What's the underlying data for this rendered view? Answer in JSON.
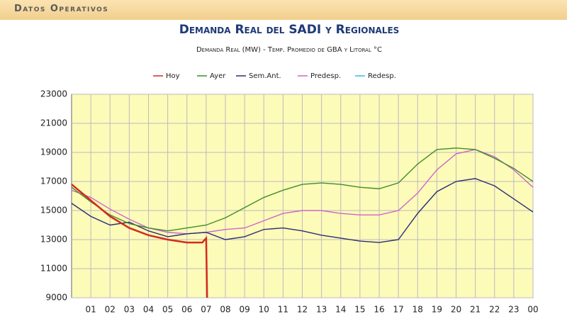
{
  "header": {
    "title": "Datos Operativos"
  },
  "chart_data": {
    "type": "line",
    "title": "Demanda Real del SADI y Regionales",
    "subtitle": "Demanda Real (MW) - Temp. Promedio de GBA y Litoral °C",
    "x": [
      0,
      1,
      2,
      3,
      4,
      5,
      6,
      7,
      8,
      9,
      10,
      11,
      12,
      13,
      14,
      15,
      16,
      17,
      18,
      19,
      20,
      21,
      22,
      23,
      24
    ],
    "xlim": [
      0,
      24
    ],
    "xticks": [
      {
        "value": 1,
        "label": "01"
      },
      {
        "value": 2,
        "label": "02"
      },
      {
        "value": 3,
        "label": "03"
      },
      {
        "value": 4,
        "label": "04"
      },
      {
        "value": 5,
        "label": "05"
      },
      {
        "value": 6,
        "label": "06"
      },
      {
        "value": 7,
        "label": "07"
      },
      {
        "value": 8,
        "label": "08"
      },
      {
        "value": 9,
        "label": "09"
      },
      {
        "value": 10,
        "label": "10"
      },
      {
        "value": 11,
        "label": "11"
      },
      {
        "value": 12,
        "label": "12"
      },
      {
        "value": 13,
        "label": "13"
      },
      {
        "value": 14,
        "label": "14"
      },
      {
        "value": 15,
        "label": "15"
      },
      {
        "value": 16,
        "label": "16"
      },
      {
        "value": 17,
        "label": "17"
      },
      {
        "value": 18,
        "label": "18"
      },
      {
        "value": 19,
        "label": "19"
      },
      {
        "value": 20,
        "label": "20"
      },
      {
        "value": 21,
        "label": "21"
      },
      {
        "value": 22,
        "label": "22"
      },
      {
        "value": 23,
        "label": "23"
      },
      {
        "value": 24,
        "label": "00"
      }
    ],
    "ylim": [
      9000,
      23000
    ],
    "yticks": [
      9000,
      11000,
      13000,
      15000,
      17000,
      19000,
      21000,
      23000
    ],
    "grid": true,
    "series": [
      {
        "name": "Hoy",
        "color": "#d42a1e",
        "x": [
          0,
          1,
          2,
          3,
          4,
          5,
          6,
          6.8,
          7,
          7.05
        ],
        "values": [
          16800,
          15700,
          14600,
          13800,
          13300,
          13000,
          12800,
          12800,
          13100,
          9000
        ]
      },
      {
        "name": "Ayer",
        "color": "#3f8c2c",
        "values": [
          16600,
          15600,
          14700,
          14100,
          13800,
          13600,
          13800,
          14000,
          14500,
          15200,
          15900,
          16400,
          16800,
          16900,
          16800,
          16600,
          16500,
          16900,
          18200,
          19200,
          19300,
          19200,
          18600,
          17900,
          17000
        ]
      },
      {
        "name": "Sem.Ant.",
        "color": "#2c2c78",
        "values": [
          15500,
          14600,
          14000,
          14200,
          13600,
          13200,
          13400,
          13500,
          13000,
          13200,
          13700,
          13800,
          13600,
          13300,
          13100,
          12900,
          12800,
          13000,
          14800,
          16300,
          17000,
          17200,
          16700,
          15800,
          14900
        ]
      },
      {
        "name": "Predesp.",
        "color": "#cc66cc",
        "values": [
          16400,
          15900,
          15100,
          14400,
          13800,
          13500,
          13400,
          13500,
          13700,
          13800,
          14300,
          14800,
          15000,
          15000,
          14800,
          14700,
          14700,
          15000,
          16200,
          17800,
          18900,
          19200,
          18700,
          17800,
          16600
        ]
      },
      {
        "name": "Redesp.",
        "color": "#33bbdd",
        "values": [
          null,
          null,
          null,
          null,
          null,
          null,
          null,
          null,
          null,
          null,
          null,
          null,
          null,
          null,
          null,
          null,
          null,
          null,
          null,
          null,
          null,
          null,
          null,
          null,
          null
        ]
      }
    ]
  }
}
